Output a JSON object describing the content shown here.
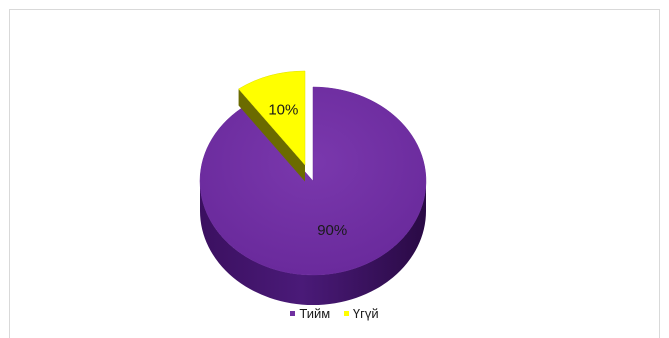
{
  "chart_data": {
    "type": "pie",
    "categories": [
      "Тийм",
      "Үгүй"
    ],
    "values": [
      90,
      10
    ],
    "labels": [
      "90%",
      "10%"
    ],
    "colors": [
      "#7030a0",
      "#ffff00"
    ],
    "exploded": "Үгүй",
    "legend_position": "bottom"
  },
  "legend": {
    "items": [
      {
        "label": "Тийм",
        "color": "#7030a0"
      },
      {
        "label": "Үгүй",
        "color": "#ffff00"
      }
    ]
  }
}
